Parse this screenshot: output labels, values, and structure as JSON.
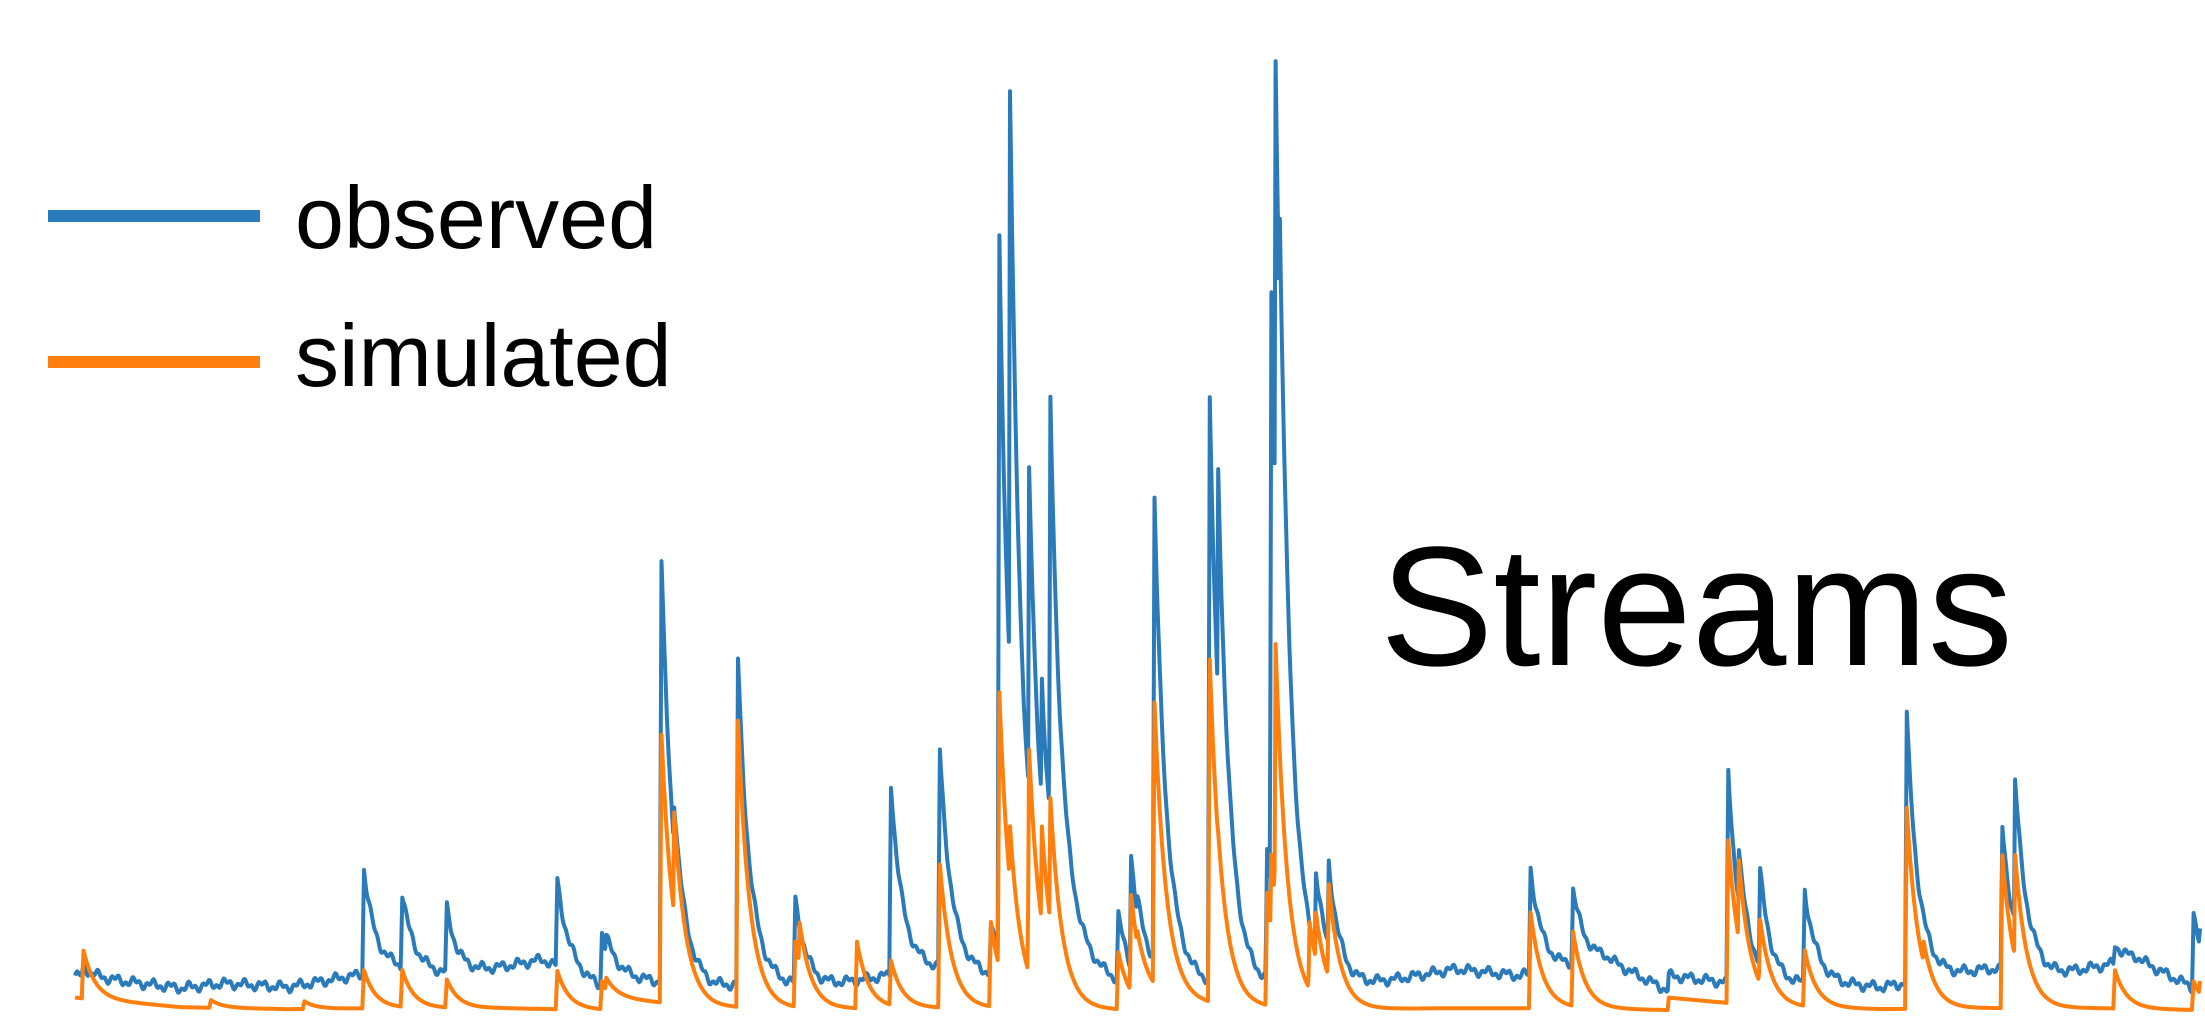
{
  "chart_data": {
    "type": "line",
    "title": "",
    "annotations": [
      "Streams"
    ],
    "xlabel": "",
    "ylabel": "",
    "grid": false,
    "axes_visible": false,
    "legend": {
      "placement": "top-left"
    },
    "ylim": [
      0,
      100
    ],
    "series": [
      {
        "name": "observed",
        "color": "#2b7bba",
        "baseline": [
          [
            0,
            3.8
          ],
          [
            5,
            2.5
          ],
          [
            7,
            3
          ],
          [
            10,
            2.6
          ],
          [
            15,
            4.5
          ],
          [
            18,
            3.8
          ],
          [
            22,
            5.5
          ],
          [
            25,
            2.2
          ]
        ],
        "peaks": [
          [
            0.4,
            1
          ],
          [
            13.6,
            11
          ],
          [
            15.4,
            8
          ],
          [
            17.5,
            7
          ],
          [
            22.7,
            9
          ],
          [
            24.8,
            6
          ],
          [
            27.6,
            44
          ],
          [
            28.2,
            19
          ],
          [
            31.2,
            34
          ],
          [
            33.9,
            9
          ],
          [
            38.4,
            20
          ],
          [
            40.7,
            23
          ],
          [
            43.1,
            5
          ],
          [
            43.5,
            77
          ],
          [
            44.0,
            92
          ],
          [
            44.9,
            52
          ],
          [
            45.5,
            30
          ],
          [
            45.9,
            59
          ],
          [
            49.1,
            7
          ],
          [
            49.7,
            14
          ],
          [
            50.8,
            50
          ],
          [
            53.4,
            61
          ],
          [
            53.8,
            54
          ],
          [
            56.1,
            14
          ],
          [
            56.3,
            72
          ],
          [
            56.5,
            97
          ],
          [
            56.7,
            80
          ],
          [
            58.4,
            12
          ],
          [
            59.0,
            13
          ],
          [
            68.5,
            11
          ],
          [
            70.5,
            8
          ],
          [
            77.8,
            22
          ],
          [
            78.3,
            14
          ],
          [
            79.3,
            12
          ],
          [
            81.4,
            10
          ],
          [
            86.2,
            28
          ],
          [
            87.0,
            6
          ],
          [
            90.7,
            15
          ],
          [
            91.3,
            20
          ],
          [
            96.0,
            2
          ],
          [
            99.7,
            8
          ]
        ]
      },
      {
        "name": "simulated",
        "color": "#ff7f0e",
        "baseline": [
          [
            0,
            1.5
          ],
          [
            5,
            0.5
          ],
          [
            10,
            0.3
          ],
          [
            15,
            0.4
          ],
          [
            20,
            0.4
          ],
          [
            25,
            0.2
          ]
        ],
        "peaks": [
          [
            0.4,
            5
          ],
          [
            6.4,
            0.8
          ],
          [
            10.8,
            0.8
          ],
          [
            13.6,
            4
          ],
          [
            15.4,
            4
          ],
          [
            17.5,
            3
          ],
          [
            22.7,
            4
          ],
          [
            24.8,
            3
          ],
          [
            27.6,
            28
          ],
          [
            28.2,
            20
          ],
          [
            31.2,
            30
          ],
          [
            33.9,
            7
          ],
          [
            34.1,
            9
          ],
          [
            36.8,
            7
          ],
          [
            38.4,
            5
          ],
          [
            40.7,
            15
          ],
          [
            43.1,
            9
          ],
          [
            43.5,
            33
          ],
          [
            44.0,
            19
          ],
          [
            44.9,
            27
          ],
          [
            45.5,
            19
          ],
          [
            45.9,
            22
          ],
          [
            49.1,
            6
          ],
          [
            49.7,
            12
          ],
          [
            50.8,
            31
          ],
          [
            53.4,
            36
          ],
          [
            53.8,
            18
          ],
          [
            56.1,
            12
          ],
          [
            56.3,
            16
          ],
          [
            56.5,
            38
          ],
          [
            56.7,
            20
          ],
          [
            58.1,
            9
          ],
          [
            58.4,
            10
          ],
          [
            59.0,
            13
          ],
          [
            68.5,
            10
          ],
          [
            70.5,
            8
          ],
          [
            77.8,
            17
          ],
          [
            78.3,
            15
          ],
          [
            79.3,
            9
          ],
          [
            81.4,
            6
          ],
          [
            86.2,
            21
          ],
          [
            87.0,
            7
          ],
          [
            90.7,
            16
          ],
          [
            91.3,
            16
          ],
          [
            96.0,
            4
          ],
          [
            99.7,
            3
          ]
        ]
      }
    ]
  }
}
